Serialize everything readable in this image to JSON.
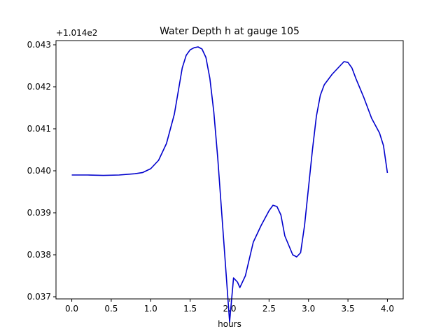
{
  "chart_data": {
    "type": "line",
    "title": "Water Depth h at gauge 105",
    "xlabel": "hours",
    "ylabel": "",
    "offset_text": "+1.014e2",
    "y_offset": 101.4,
    "xlim": [
      -0.2,
      4.2
    ],
    "ylim": [
      0.03695,
      0.0431
    ],
    "xticks": [
      0.0,
      0.5,
      1.0,
      1.5,
      2.0,
      2.5,
      3.0,
      3.5,
      4.0
    ],
    "xtick_labels": [
      "0.0",
      "0.5",
      "1.0",
      "1.5",
      "2.0",
      "2.5",
      "3.0",
      "3.5",
      "4.0"
    ],
    "yticks": [
      0.037,
      0.038,
      0.039,
      0.04,
      0.041,
      0.042,
      0.043
    ],
    "ytick_labels": [
      "0.037",
      "0.038",
      "0.039",
      "0.040",
      "0.041",
      "0.042",
      "0.043"
    ],
    "grid": false,
    "line_color": "#0000cc",
    "series": [
      {
        "x": [
          0.0,
          0.2,
          0.4,
          0.6,
          0.8,
          0.9,
          1.0,
          1.1,
          1.2,
          1.3,
          1.35,
          1.4,
          1.45,
          1.5,
          1.55,
          1.6,
          1.65,
          1.7,
          1.75,
          1.8,
          1.85,
          1.9,
          1.95,
          2.0,
          2.05,
          2.1,
          2.13,
          2.2,
          2.3,
          2.4,
          2.5,
          2.55,
          2.6,
          2.65,
          2.7,
          2.8,
          2.85,
          2.9,
          2.95,
          3.0,
          3.05,
          3.1,
          3.15,
          3.2,
          3.3,
          3.4,
          3.45,
          3.5,
          3.55,
          3.6,
          3.7,
          3.8,
          3.9,
          3.95,
          4.0
        ],
        "y": [
          0.0399,
          0.0399,
          0.03989,
          0.0399,
          0.03993,
          0.03996,
          0.04005,
          0.04025,
          0.04065,
          0.04135,
          0.0419,
          0.04245,
          0.04275,
          0.04288,
          0.04293,
          0.04295,
          0.0429,
          0.0427,
          0.0422,
          0.0414,
          0.0403,
          0.039,
          0.0377,
          0.0364,
          0.03745,
          0.03735,
          0.03722,
          0.0375,
          0.0383,
          0.0387,
          0.03905,
          0.03918,
          0.03915,
          0.03895,
          0.03845,
          0.038,
          0.03795,
          0.03805,
          0.0387,
          0.0396,
          0.0405,
          0.0413,
          0.0418,
          0.04205,
          0.0423,
          0.0425,
          0.0426,
          0.04258,
          0.04245,
          0.0422,
          0.04175,
          0.04125,
          0.0409,
          0.0406,
          0.03995
        ]
      }
    ]
  }
}
